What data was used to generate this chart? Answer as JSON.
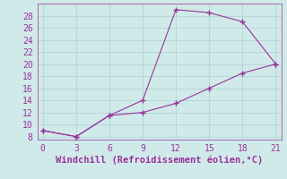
{
  "line1_x": [
    0,
    3,
    6,
    9,
    12,
    15,
    18,
    21
  ],
  "line1_y": [
    9,
    8,
    11.5,
    14,
    29,
    28.5,
    27,
    20
  ],
  "line2_x": [
    0,
    3,
    6,
    9,
    12,
    15,
    18,
    21
  ],
  "line2_y": [
    9,
    8,
    11.5,
    12,
    13.5,
    16,
    18.5,
    20
  ],
  "line_color": "#993399",
  "marker": "+",
  "marker_size": 5,
  "linewidth": 0.8,
  "xlabel": "Windchill (Refroidissement éolien,°C)",
  "xlabel_fontsize": 7.5,
  "xlim": [
    -0.5,
    21.5
  ],
  "ylim": [
    7.5,
    30
  ],
  "xticks": [
    0,
    3,
    6,
    9,
    12,
    15,
    18,
    21
  ],
  "yticks": [
    8,
    10,
    12,
    14,
    16,
    18,
    20,
    22,
    24,
    26,
    28
  ],
  "background_color": "#d0eaea",
  "grid_color": "#b8d8d8",
  "tick_fontsize": 7,
  "tick_color": "#993399"
}
